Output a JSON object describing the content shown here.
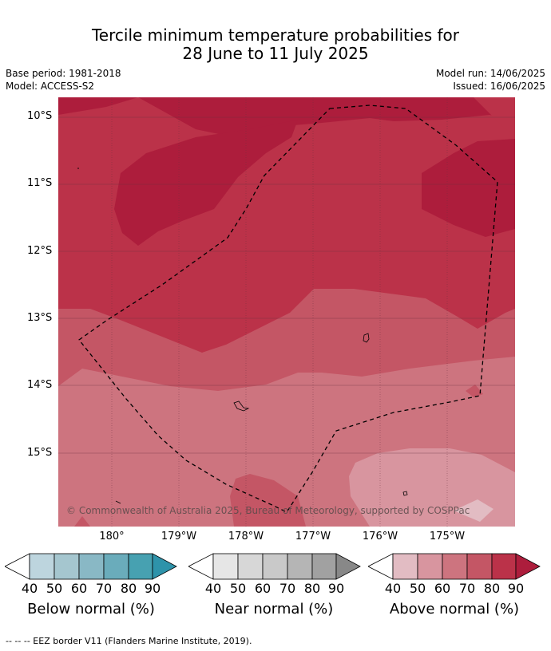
{
  "title": {
    "line1": "Tercile minimum temperature probabilities for",
    "line2": "28 June to 11 July 2025"
  },
  "meta": {
    "base_period": "Base period: 1981-2018",
    "model": "Model: ACCESS-S2",
    "model_run": "Model run: 14/06/2025",
    "issued": "Issued: 16/06/2025"
  },
  "map": {
    "copyright": "© Commonwealth of Australia 2025, Bureau of Meteorology, supported by COSPPac",
    "lat_labels": [
      "10°S",
      "11°S",
      "12°S",
      "13°S",
      "14°S",
      "15°S"
    ],
    "lon_labels": [
      "180°",
      "179°W",
      "178°W",
      "177°W",
      "176°W",
      "175°W"
    ]
  },
  "colorbars": [
    {
      "title": "Below normal (%)",
      "ticks": [
        "40",
        "50",
        "60",
        "70",
        "80",
        "90"
      ],
      "colors": [
        "#ffffff",
        "#bdd5de",
        "#a5c6cf",
        "#89b8c5",
        "#6aacbb",
        "#47a1b1",
        "#2e93aa"
      ]
    },
    {
      "title": "Near normal (%)",
      "ticks": [
        "40",
        "50",
        "60",
        "70",
        "80",
        "90"
      ],
      "colors": [
        "#ffffff",
        "#e6e6e6",
        "#d7d7d7",
        "#c9c9c9",
        "#b5b5b5",
        "#a1a1a1",
        "#888888"
      ]
    },
    {
      "title": "Above normal (%)",
      "ticks": [
        "40",
        "50",
        "60",
        "70",
        "80",
        "90"
      ],
      "colors": [
        "#ffffff",
        "#e2bcc3",
        "#d8959f",
        "#cd747f",
        "#c45665",
        "#bb3249",
        "#ad1d3c"
      ]
    }
  ],
  "footer": "--  --  -- EEZ border V11 (Flanders Marine Institute, 2019)."
}
